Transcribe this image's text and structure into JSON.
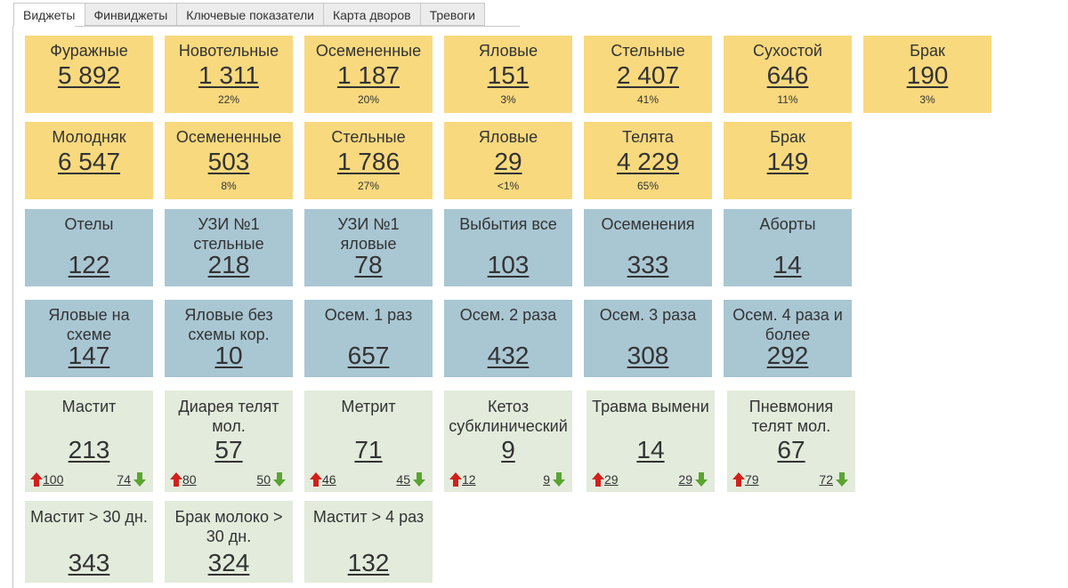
{
  "tabs": [
    "Виджеты",
    "Финвиджеты",
    "Ключевые показатели",
    "Карта дворов",
    "Тревоги"
  ],
  "rows": [
    [
      {
        "label": "Фуражные",
        "value": "5 892",
        "pct": ""
      },
      {
        "label": "Новотельные",
        "value": "1 311",
        "pct": "22%"
      },
      {
        "label": "Осемененные",
        "value": "1 187",
        "pct": "20%"
      },
      {
        "label": "Яловые",
        "value": "151",
        "pct": "3%"
      },
      {
        "label": "Стельные",
        "value": "2 407",
        "pct": "41%"
      },
      {
        "label": "Сухостой",
        "value": "646",
        "pct": "11%"
      },
      {
        "label": "Брак",
        "value": "190",
        "pct": "3%"
      }
    ],
    [
      {
        "label": "Молодняк",
        "value": "6 547",
        "pct": ""
      },
      {
        "label": "Осемененные",
        "value": "503",
        "pct": "8%"
      },
      {
        "label": "Стельные",
        "value": "1 786",
        "pct": "27%"
      },
      {
        "label": "Яловые",
        "value": "29",
        "pct": "<1%"
      },
      {
        "label": "Телята",
        "value": "4 229",
        "pct": "65%"
      },
      {
        "label": "Брак",
        "value": "149",
        "pct": ""
      }
    ],
    [
      {
        "label": "Отелы",
        "value": "122"
      },
      {
        "label": "УЗИ №1 стельные",
        "value": "218"
      },
      {
        "label": "УЗИ №1 яловые",
        "value": "78"
      },
      {
        "label": "Выбытия все",
        "value": "103"
      },
      {
        "label": "Осеменения",
        "value": "333"
      },
      {
        "label": "Аборты",
        "value": "14"
      }
    ],
    [
      {
        "label": "Яловые на схеме",
        "value": "147"
      },
      {
        "label": "Яловые без схемы кор.",
        "value": "10"
      },
      {
        "label": "Осем. 1 раз",
        "value": "657"
      },
      {
        "label": "Осем. 2 раза",
        "value": "432"
      },
      {
        "label": "Осем. 3 раза",
        "value": "308"
      },
      {
        "label": "Осем. 4 раза и более",
        "value": "292"
      }
    ],
    [
      {
        "label": "Мастит",
        "value": "213",
        "up": "100",
        "down": "74"
      },
      {
        "label": "Диарея телят мол.",
        "value": "57",
        "up": "80",
        "down": "50"
      },
      {
        "label": "Метрит",
        "value": "71",
        "up": "46",
        "down": "45"
      },
      {
        "label": "Кетоз субклинический",
        "value": "9",
        "up": "12",
        "down": "9"
      },
      {
        "label": "Травма вымени",
        "value": "14",
        "up": "29",
        "down": "29"
      },
      {
        "label": "Пневмония телят мол.",
        "value": "67",
        "up": "79",
        "down": "72"
      }
    ],
    [
      {
        "label": "Мастит > 30 дн.",
        "value": "343"
      },
      {
        "label": "Брак молоко > 30 дн.",
        "value": "324"
      },
      {
        "label": "Мастит > 4 раз",
        "value": "132"
      }
    ]
  ],
  "icons": {
    "up": "arrow-up-icon",
    "down": "arrow-down-icon"
  },
  "colors": {
    "yellow": "#f8d97e",
    "blue": "#a9c6d3",
    "green": "#e3ebdc",
    "up": "#d0211c",
    "down": "#5aa432"
  }
}
